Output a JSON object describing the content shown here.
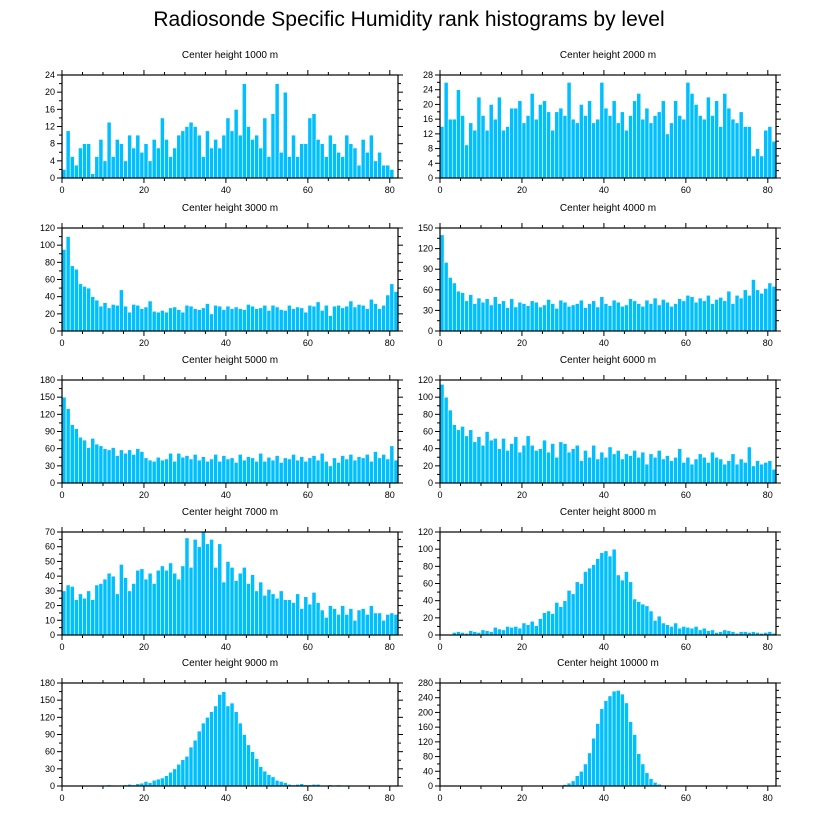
{
  "title": "Radiosonde Specific Humidity rank histograms by level",
  "colors": {
    "bar": "#00bfff",
    "bar_edge": "#ffffff",
    "axis": "#000000"
  },
  "chart_data": [
    {
      "type": "bar",
      "title": "Center height 1000 m",
      "xlim": [
        0,
        82
      ],
      "ylim": [
        0,
        24
      ],
      "xticks": [
        0,
        20,
        40,
        60,
        80
      ],
      "yticks": [
        0,
        4,
        8,
        12,
        16,
        20,
        24
      ],
      "values": [
        2,
        11,
        5,
        3,
        7,
        8,
        8,
        1,
        5,
        9,
        4,
        13,
        5,
        9,
        8,
        4,
        10,
        7,
        10,
        6,
        8,
        4,
        9,
        7,
        14,
        9,
        5,
        7,
        10,
        11,
        12,
        13,
        12,
        10,
        5,
        11,
        7,
        9,
        7,
        10,
        14,
        11,
        16,
        10,
        22,
        12,
        9,
        10,
        7,
        14,
        5,
        15,
        22,
        6,
        20,
        5,
        10,
        5,
        8,
        8,
        14,
        15,
        9,
        8,
        5,
        10,
        8,
        6,
        5,
        10,
        8,
        7,
        3,
        9,
        6,
        10,
        4,
        6,
        3,
        3,
        2,
        0
      ]
    },
    {
      "type": "bar",
      "title": "Center height 2000 m",
      "xlim": [
        0,
        82
      ],
      "ylim": [
        0,
        28
      ],
      "xticks": [
        0,
        20,
        40,
        60,
        80
      ],
      "yticks": [
        0,
        4,
        8,
        12,
        16,
        20,
        24,
        28
      ],
      "values": [
        14,
        26,
        16,
        16,
        24,
        17,
        9,
        15,
        13,
        22,
        17,
        13,
        20,
        16,
        22,
        13,
        14,
        19,
        19,
        21,
        15,
        17,
        23,
        16,
        20,
        21,
        18,
        13,
        18,
        19,
        17,
        26,
        16,
        15,
        20,
        17,
        21,
        15,
        16,
        26,
        19,
        17,
        21,
        15,
        18,
        13,
        17,
        21,
        23,
        16,
        19,
        15,
        17,
        18,
        21,
        12,
        15,
        21,
        17,
        16,
        26,
        23,
        20,
        17,
        16,
        22,
        17,
        21,
        14,
        23,
        19,
        16,
        15,
        18,
        14,
        14,
        6,
        8,
        6,
        13,
        14,
        10
      ]
    },
    {
      "type": "bar",
      "title": "Center height 3000 m",
      "xlim": [
        0,
        82
      ],
      "ylim": [
        0,
        120
      ],
      "xticks": [
        0,
        20,
        40,
        60,
        80
      ],
      "yticks": [
        0,
        20,
        40,
        60,
        80,
        100,
        120
      ],
      "values": [
        95,
        110,
        76,
        72,
        55,
        52,
        50,
        40,
        36,
        29,
        33,
        27,
        31,
        30,
        48,
        29,
        22,
        31,
        30,
        26,
        28,
        35,
        23,
        22,
        24,
        22,
        27,
        28,
        25,
        22,
        30,
        29,
        26,
        25,
        27,
        32,
        20,
        30,
        29,
        25,
        29,
        26,
        28,
        26,
        25,
        31,
        29,
        26,
        27,
        30,
        24,
        30,
        28,
        25,
        24,
        30,
        26,
        28,
        27,
        22,
        30,
        29,
        34,
        24,
        30,
        18,
        29,
        30,
        27,
        29,
        35,
        28,
        31,
        30,
        26,
        37,
        32,
        26,
        30,
        42,
        55,
        46
      ]
    },
    {
      "type": "bar",
      "title": "Center height 4000 m",
      "xlim": [
        0,
        82
      ],
      "ylim": [
        0,
        150
      ],
      "xticks": [
        0,
        20,
        40,
        60,
        80
      ],
      "yticks": [
        0,
        30,
        60,
        90,
        120,
        150
      ],
      "values": [
        140,
        100,
        78,
        70,
        58,
        56,
        44,
        53,
        40,
        48,
        42,
        47,
        38,
        50,
        40,
        44,
        34,
        47,
        35,
        42,
        40,
        37,
        44,
        42,
        35,
        38,
        46,
        40,
        33,
        45,
        42,
        36,
        38,
        40,
        45,
        34,
        40,
        44,
        35,
        50,
        40,
        37,
        45,
        42,
        36,
        38,
        47,
        44,
        40,
        36,
        45,
        40,
        48,
        38,
        46,
        42,
        36,
        40,
        47,
        44,
        52,
        50,
        42,
        48,
        44,
        52,
        40,
        46,
        49,
        44,
        58,
        40,
        52,
        48,
        60,
        52,
        75,
        60,
        55,
        62,
        70,
        65
      ]
    },
    {
      "type": "bar",
      "title": "Center height 5000 m",
      "xlim": [
        0,
        82
      ],
      "ylim": [
        0,
        180
      ],
      "xticks": [
        0,
        20,
        40,
        60,
        80
      ],
      "yticks": [
        0,
        30,
        60,
        90,
        120,
        150,
        180
      ],
      "values": [
        150,
        130,
        102,
        95,
        80,
        75,
        62,
        78,
        68,
        65,
        60,
        58,
        62,
        48,
        58,
        52,
        58,
        50,
        60,
        55,
        44,
        40,
        38,
        45,
        40,
        42,
        52,
        38,
        52,
        45,
        48,
        42,
        50,
        40,
        46,
        38,
        42,
        50,
        38,
        48,
        42,
        44,
        36,
        50,
        40,
        46,
        44,
        38,
        52,
        38,
        45,
        40,
        48,
        36,
        44,
        42,
        50,
        40,
        46,
        38,
        44,
        48,
        40,
        52,
        38,
        30,
        44,
        36,
        48,
        42,
        50,
        40,
        46,
        44,
        50,
        38,
        55,
        44,
        50,
        42,
        65,
        40
      ]
    },
    {
      "type": "bar",
      "title": "Center height 6000 m",
      "xlim": [
        0,
        82
      ],
      "ylim": [
        0,
        120
      ],
      "xticks": [
        0,
        20,
        40,
        60,
        80
      ],
      "yticks": [
        0,
        20,
        40,
        60,
        80,
        100,
        120
      ],
      "values": [
        115,
        100,
        85,
        68,
        62,
        66,
        55,
        62,
        48,
        54,
        44,
        60,
        50,
        52,
        40,
        52,
        38,
        46,
        54,
        36,
        44,
        55,
        44,
        38,
        40,
        50,
        36,
        46,
        30,
        48,
        46,
        36,
        40,
        44,
        26,
        38,
        30,
        44,
        28,
        36,
        30,
        42,
        34,
        38,
        28,
        34,
        32,
        38,
        30,
        36,
        22,
        34,
        30,
        38,
        28,
        32,
        26,
        30,
        40,
        24,
        30,
        22,
        28,
        34,
        30,
        24,
        36,
        30,
        28,
        22,
        26,
        34,
        22,
        28,
        24,
        42,
        20,
        26,
        22,
        24,
        26,
        16
      ]
    },
    {
      "type": "bar",
      "title": "Center height 7000 m",
      "xlim": [
        0,
        82
      ],
      "ylim": [
        0,
        70
      ],
      "xticks": [
        0,
        20,
        40,
        60,
        80
      ],
      "yticks": [
        0,
        10,
        20,
        30,
        40,
        50,
        60,
        70
      ],
      "values": [
        30,
        34,
        33,
        24,
        28,
        25,
        30,
        24,
        34,
        35,
        38,
        42,
        40,
        28,
        48,
        39,
        30,
        35,
        44,
        45,
        38,
        42,
        35,
        44,
        47,
        44,
        49,
        42,
        38,
        47,
        66,
        46,
        65,
        60,
        70,
        62,
        65,
        46,
        62,
        36,
        50,
        46,
        37,
        42,
        46,
        35,
        41,
        30,
        36,
        27,
        31,
        28,
        25,
        30,
        24,
        24,
        22,
        28,
        18,
        26,
        21,
        29,
        22,
        17,
        12,
        20,
        18,
        14,
        20,
        14,
        18,
        10,
        17,
        18,
        14,
        20,
        15,
        15,
        10,
        14,
        15,
        14
      ]
    },
    {
      "type": "bar",
      "title": "Center height 8000 m",
      "xlim": [
        0,
        82
      ],
      "ylim": [
        0,
        120
      ],
      "xticks": [
        0,
        20,
        40,
        60,
        80
      ],
      "yticks": [
        0,
        20,
        40,
        60,
        80,
        100,
        120
      ],
      "values": [
        1,
        1,
        1,
        3,
        4,
        3,
        2,
        5,
        4,
        3,
        6,
        5,
        4,
        9,
        7,
        6,
        10,
        9,
        10,
        8,
        14,
        12,
        16,
        11,
        19,
        26,
        28,
        25,
        38,
        33,
        40,
        52,
        48,
        62,
        60,
        74,
        78,
        82,
        89,
        96,
        98,
        92,
        100,
        70,
        64,
        74,
        62,
        42,
        39,
        36,
        34,
        28,
        17,
        22,
        14,
        12,
        10,
        14,
        8,
        10,
        9,
        8,
        10,
        6,
        8,
        5,
        6,
        3,
        4,
        6,
        5,
        4,
        2,
        4,
        4,
        3,
        4,
        3,
        2,
        3,
        4,
        2
      ]
    },
    {
      "type": "bar",
      "title": "Center height 9000 m",
      "xlim": [
        0,
        82
      ],
      "ylim": [
        0,
        180
      ],
      "xticks": [
        0,
        20,
        40,
        60,
        80
      ],
      "yticks": [
        0,
        30,
        60,
        90,
        120,
        150,
        180
      ],
      "values": [
        0,
        0,
        0,
        0,
        0,
        0,
        0,
        0,
        1,
        1,
        0,
        2,
        1,
        0,
        1,
        2,
        3,
        2,
        4,
        5,
        8,
        6,
        10,
        12,
        14,
        18,
        24,
        30,
        38,
        46,
        52,
        68,
        80,
        96,
        110,
        120,
        130,
        140,
        160,
        165,
        140,
        145,
        130,
        110,
        90,
        72,
        60,
        48,
        34,
        26,
        20,
        16,
        10,
        8,
        6,
        3,
        2,
        3,
        4,
        2,
        2,
        3,
        3,
        1,
        1,
        2,
        1,
        2,
        1,
        1,
        0,
        1,
        0,
        0,
        0,
        0,
        0,
        0,
        0,
        0,
        0,
        0
      ]
    },
    {
      "type": "bar",
      "title": "Center height 10000 m",
      "xlim": [
        0,
        82
      ],
      "ylim": [
        0,
        280
      ],
      "xticks": [
        0,
        20,
        40,
        60,
        80
      ],
      "yticks": [
        0,
        40,
        80,
        120,
        160,
        200,
        240,
        280
      ],
      "values": [
        0,
        0,
        0,
        0,
        0,
        0,
        0,
        0,
        0,
        0,
        0,
        0,
        0,
        0,
        0,
        0,
        0,
        0,
        0,
        0,
        0,
        0,
        0,
        0,
        0,
        0,
        0,
        0,
        0,
        2,
        4,
        8,
        14,
        28,
        40,
        60,
        90,
        130,
        170,
        210,
        232,
        245,
        258,
        260,
        250,
        226,
        175,
        140,
        88,
        60,
        36,
        20,
        10,
        5,
        2,
        1,
        1,
        0,
        0,
        0,
        0,
        0,
        0,
        0,
        0,
        0,
        0,
        0,
        0,
        0,
        0,
        0,
        0,
        0,
        0,
        0,
        0,
        0,
        0,
        0,
        0,
        0
      ]
    }
  ]
}
